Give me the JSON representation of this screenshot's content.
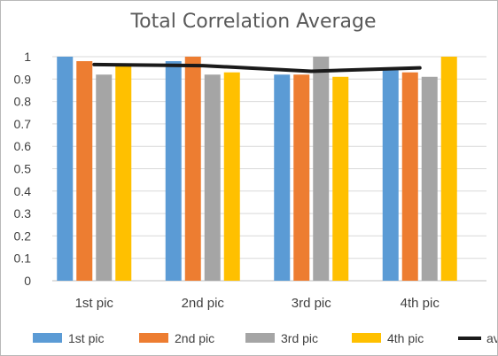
{
  "chart_data": {
    "type": "bar",
    "title": "Total Correlation Average",
    "xlabel": "",
    "ylabel": "",
    "ylim": [
      0,
      1
    ],
    "yticks": [
      "0",
      "0.1",
      "0.2",
      "0.3",
      "0.4",
      "0.5",
      "0.6",
      "0.7",
      "0.8",
      "0.9",
      "1"
    ],
    "grid": true,
    "legend_position": "bottom",
    "categories": [
      "1st pic",
      "2nd pic",
      "3rd pic",
      "4th pic"
    ],
    "series": [
      {
        "name": "1st pic",
        "type": "bar",
        "color": "#5B9BD5",
        "values": [
          1.0,
          0.98,
          0.92,
          0.94
        ]
      },
      {
        "name": "2nd pic",
        "type": "bar",
        "color": "#ED7D31",
        "values": [
          0.98,
          1.0,
          0.92,
          0.93
        ]
      },
      {
        "name": "3rd pic",
        "type": "bar",
        "color": "#A5A5A5",
        "values": [
          0.92,
          0.92,
          1.0,
          0.91
        ]
      },
      {
        "name": "4th pic",
        "type": "bar",
        "color": "#FFC000",
        "values": [
          0.96,
          0.93,
          0.91,
          1.0
        ]
      },
      {
        "name": "avg",
        "type": "line",
        "color": "#1A1A1A",
        "values": [
          0.965,
          0.96,
          0.935,
          0.95
        ]
      }
    ]
  }
}
